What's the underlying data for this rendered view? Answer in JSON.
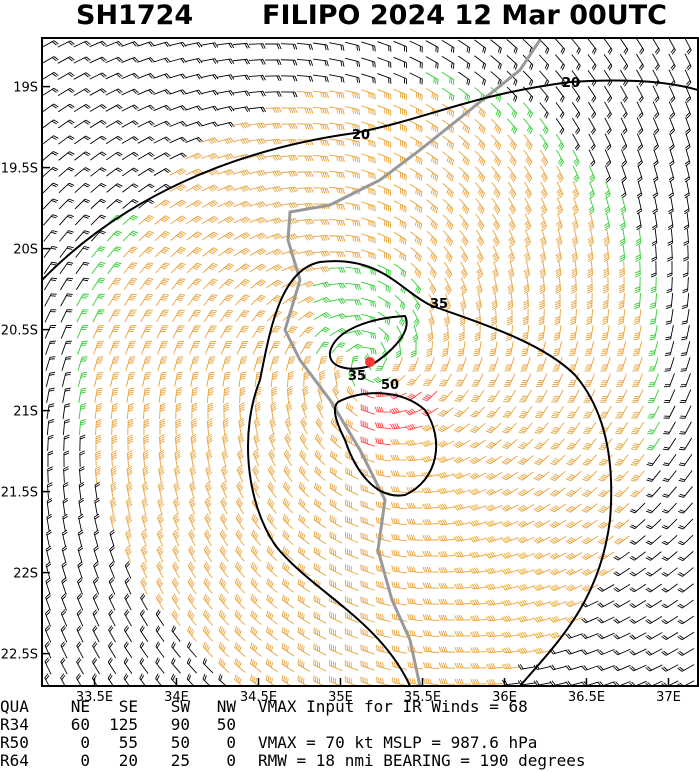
{
  "header": {
    "id": "SH1724",
    "title": "FILIPO 2024 12 Mar 00UTC"
  },
  "map": {
    "xlim": [
      33.18,
      37.18
    ],
    "ylim": [
      -18.7,
      -22.7
    ],
    "xticks": [
      {
        "value": 33.5,
        "label": "33.5E"
      },
      {
        "value": 34,
        "label": "34E"
      },
      {
        "value": 34.5,
        "label": "34.5E"
      },
      {
        "value": 35,
        "label": "35E"
      },
      {
        "value": 35.5,
        "label": "35.5E"
      },
      {
        "value": 36,
        "label": "36E"
      },
      {
        "value": 36.5,
        "label": "36.5E"
      },
      {
        "value": 37,
        "label": "37E"
      }
    ],
    "yticks": [
      {
        "value": -19,
        "label": "19S"
      },
      {
        "value": -19.5,
        "label": "19.5S"
      },
      {
        "value": -20,
        "label": "20S"
      },
      {
        "value": -20.5,
        "label": "20.5S"
      },
      {
        "value": -21,
        "label": "21S"
      },
      {
        "value": -21.5,
        "label": "21.5S"
      },
      {
        "value": -22,
        "label": "22S"
      },
      {
        "value": -22.5,
        "label": "22.5S"
      }
    ],
    "contour_labels": [
      "20",
      "20",
      "35",
      "35",
      "50"
    ]
  },
  "table": {
    "header": [
      "QUA",
      "NE",
      "SE",
      "SW",
      "NW"
    ],
    "rows": [
      [
        "R34",
        "60",
        "125",
        "90",
        "50"
      ],
      [
        "R50",
        "0",
        "55",
        "50",
        "0"
      ],
      [
        "R64",
        "0",
        "20",
        "25",
        "0"
      ]
    ],
    "notes": [
      "VMAX Input for IR Winds =   68",
      "VMAX =   70 kt MSLP =  987.6 hPa",
      "RMW =   18 nmi BEARING =  190 degrees"
    ]
  }
}
